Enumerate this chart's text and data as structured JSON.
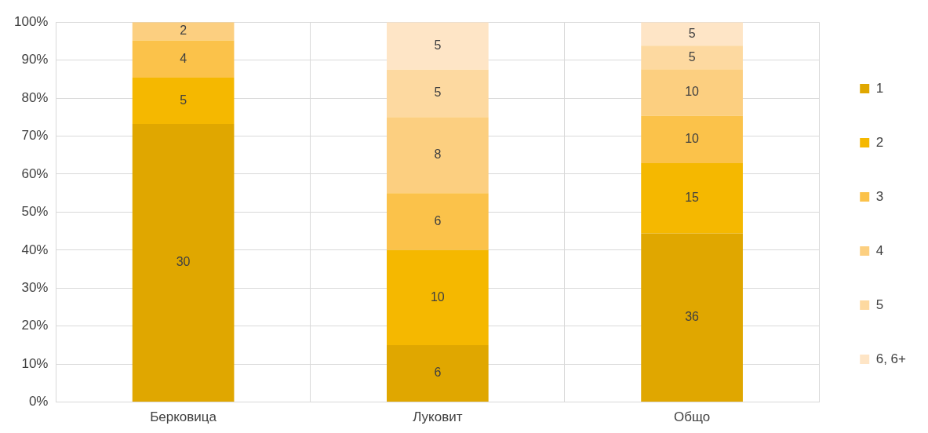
{
  "chart_data": {
    "type": "bar",
    "stacked": true,
    "categories": [
      "Берковица",
      "Луковит",
      "Общо"
    ],
    "series": [
      {
        "name": "1",
        "color": "#e0a700",
        "values": [
          73.2,
          15,
          44.4
        ]
      },
      {
        "name": "2",
        "color": "#f5b800",
        "values": [
          12.2,
          25,
          18.5
        ]
      },
      {
        "name": "3",
        "color": "#fbc24a",
        "values": [
          9.8,
          15,
          12.4
        ]
      },
      {
        "name": "4",
        "color": "#fccf80",
        "values": [
          4.8,
          20,
          12.3
        ]
      },
      {
        "name": "5",
        "color": "#fdd9a0",
        "values": [
          null,
          12.5,
          6.2
        ]
      },
      {
        "name": "6, 6+",
        "color": "#fee5c6",
        "values": [
          null,
          12.5,
          6.2
        ]
      }
    ],
    "annotations": [
      "30",
      "5",
      "4",
      "2",
      "6",
      "10",
      "6",
      "8",
      "5",
      "5",
      "36",
      "15",
      "10",
      "10",
      "5",
      "5"
    ],
    "ylim": [
      0,
      100
    ],
    "yticks": [
      {
        "value": 0,
        "label": "0%"
      },
      {
        "value": 10,
        "label": "10%"
      },
      {
        "value": 20,
        "label": "20%"
      },
      {
        "value": 30,
        "label": "30%"
      },
      {
        "value": 40,
        "label": "40%"
      },
      {
        "value": 50,
        "label": "50%"
      },
      {
        "value": 60,
        "label": "60%"
      },
      {
        "value": 70,
        "label": "70%"
      },
      {
        "value": 80,
        "label": "80%"
      },
      {
        "value": 90,
        "label": "90%"
      },
      {
        "value": 100,
        "label": "100%"
      }
    ],
    "grid": true,
    "legend": "right"
  }
}
